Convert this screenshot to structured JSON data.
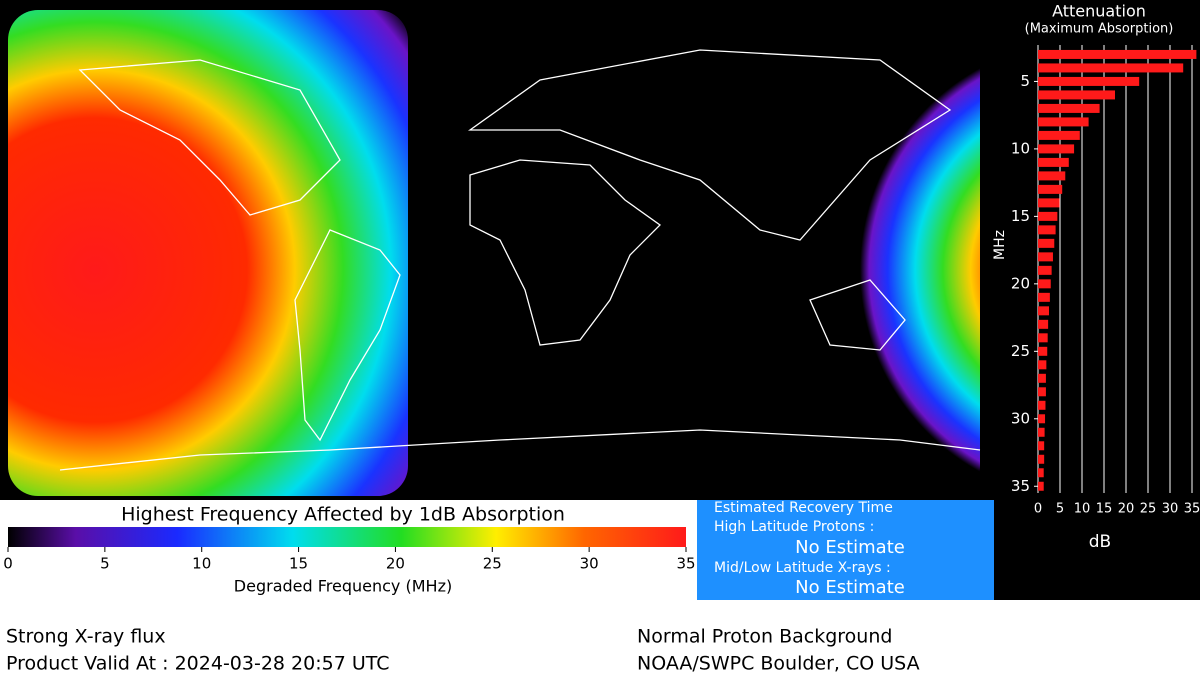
{
  "colorbar": {
    "title": "Highest Frequency Affected by 1dB Absorption",
    "lim": [
      0,
      35
    ],
    "ticks": [
      0,
      5,
      10,
      15,
      20,
      25,
      30,
      35
    ],
    "label": "Degraded Frequency (MHz)"
  },
  "recovery": {
    "title": "Estimated Recovery Time",
    "rows": [
      {
        "label": "High Latitude Protons :",
        "value": "No Estimate"
      },
      {
        "label": "Mid/Low Latitude X-rays :",
        "value": "No Estimate"
      }
    ]
  },
  "footer": {
    "left": [
      "Strong X-ray flux",
      "Product Valid At : 2024-03-28 20:57 UTC"
    ],
    "right": [
      "Normal Proton Background",
      "NOAA/SWPC Boulder, CO USA"
    ]
  },
  "chart_data": {
    "type": "bar",
    "title": "Attenuation",
    "subtitle": "(Maximum Absorption)",
    "y_label": "MHz",
    "x_label": "dB",
    "categories": [
      3,
      4,
      5,
      6,
      7,
      8,
      9,
      10,
      11,
      12,
      13,
      14,
      15,
      16,
      17,
      18,
      19,
      20,
      21,
      22,
      23,
      24,
      25,
      26,
      27,
      28,
      29,
      30,
      31,
      32,
      33,
      34,
      35
    ],
    "values": [
      36,
      33,
      23,
      17.5,
      14,
      11.5,
      9.5,
      8.2,
      7,
      6.2,
      5.5,
      4.9,
      4.4,
      4,
      3.7,
      3.4,
      3.1,
      2.9,
      2.7,
      2.5,
      2.3,
      2.2,
      2.1,
      1.9,
      1.8,
      1.8,
      1.7,
      1.6,
      1.5,
      1.4,
      1.4,
      1.3,
      1.3
    ],
    "color": "#ff1a1a",
    "xlim": [
      0,
      35
    ],
    "xticks": [
      0,
      5,
      10,
      15,
      20,
      25,
      30,
      35
    ],
    "ylim": [
      2.3,
      35.5
    ],
    "yticks": [
      5,
      10,
      15,
      20,
      25,
      30,
      35
    ],
    "grid": true
  }
}
